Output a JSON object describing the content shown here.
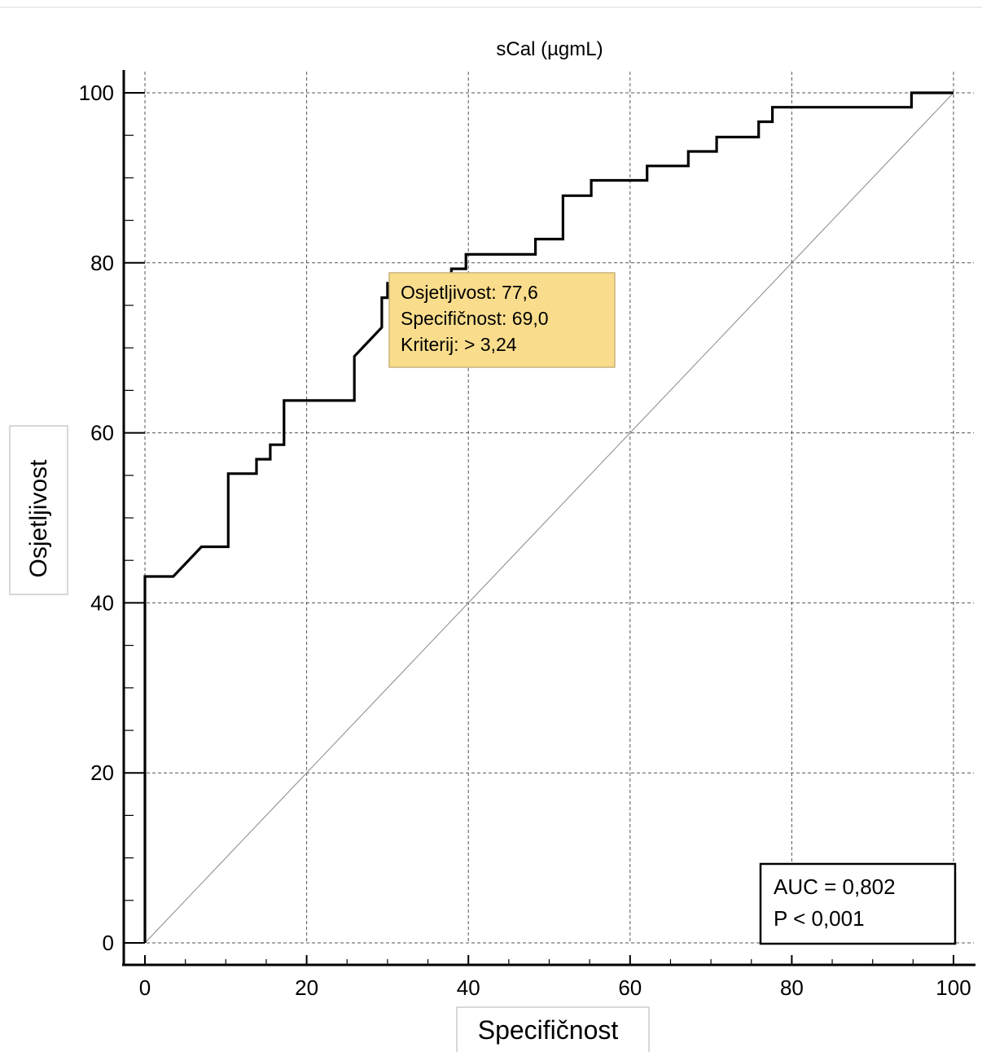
{
  "chart_data": {
    "type": "line",
    "title": "sCal (µgmL)",
    "xlabel": "Specifičnost",
    "ylabel": "Osjetljivost",
    "xlim": [
      0,
      100
    ],
    "ylim": [
      0,
      100
    ],
    "x_ticks": [
      "0",
      "20",
      "40",
      "60",
      "80",
      "100"
    ],
    "y_ticks": [
      "0",
      "20",
      "40",
      "60",
      "80",
      "100"
    ],
    "grid": true,
    "series": [
      {
        "x": [
          0,
          0,
          3.5,
          7,
          10.3,
          10.3,
          13.8,
          13.8,
          15.5,
          15.5,
          17.2,
          17.2,
          25.9,
          25.9,
          29.3,
          29.3,
          30,
          30,
          34.5,
          34.5,
          37.9,
          37.9,
          39.7,
          39.7,
          48.3,
          48.3,
          51.7,
          51.7,
          55.2,
          55.2,
          62.1,
          62.1,
          67.2,
          67.2,
          70.7,
          70.7,
          75.9,
          75.9,
          77.6,
          77.6,
          94.8,
          94.8,
          100
        ],
        "y": [
          0,
          43.1,
          43.1,
          46.6,
          46.6,
          55.2,
          55.2,
          56.9,
          56.9,
          58.6,
          58.6,
          63.8,
          63.8,
          69.0,
          72.4,
          75.9,
          75.9,
          77.6,
          77.6,
          77.6,
          77.6,
          79.3,
          79.3,
          81.0,
          81.0,
          82.8,
          82.8,
          87.9,
          87.9,
          89.7,
          89.7,
          91.4,
          91.4,
          93.1,
          93.1,
          94.8,
          94.8,
          96.6,
          96.6,
          98.3,
          98.3,
          100,
          100
        ]
      }
    ],
    "reference_line": {
      "x": [
        0,
        100
      ],
      "y": [
        0,
        100
      ]
    },
    "tooltip": {
      "lines": [
        "Osjetljivost: 77,6",
        "Specifičnost: 69,0",
        "Kriterij: > 3,24"
      ],
      "bg_color": "#fadd8c",
      "border_color": "#c8b478"
    },
    "stats_box": {
      "lines": [
        "AUC = 0,802",
        "P < 0,001"
      ],
      "legend_position": "bottom-right"
    }
  }
}
